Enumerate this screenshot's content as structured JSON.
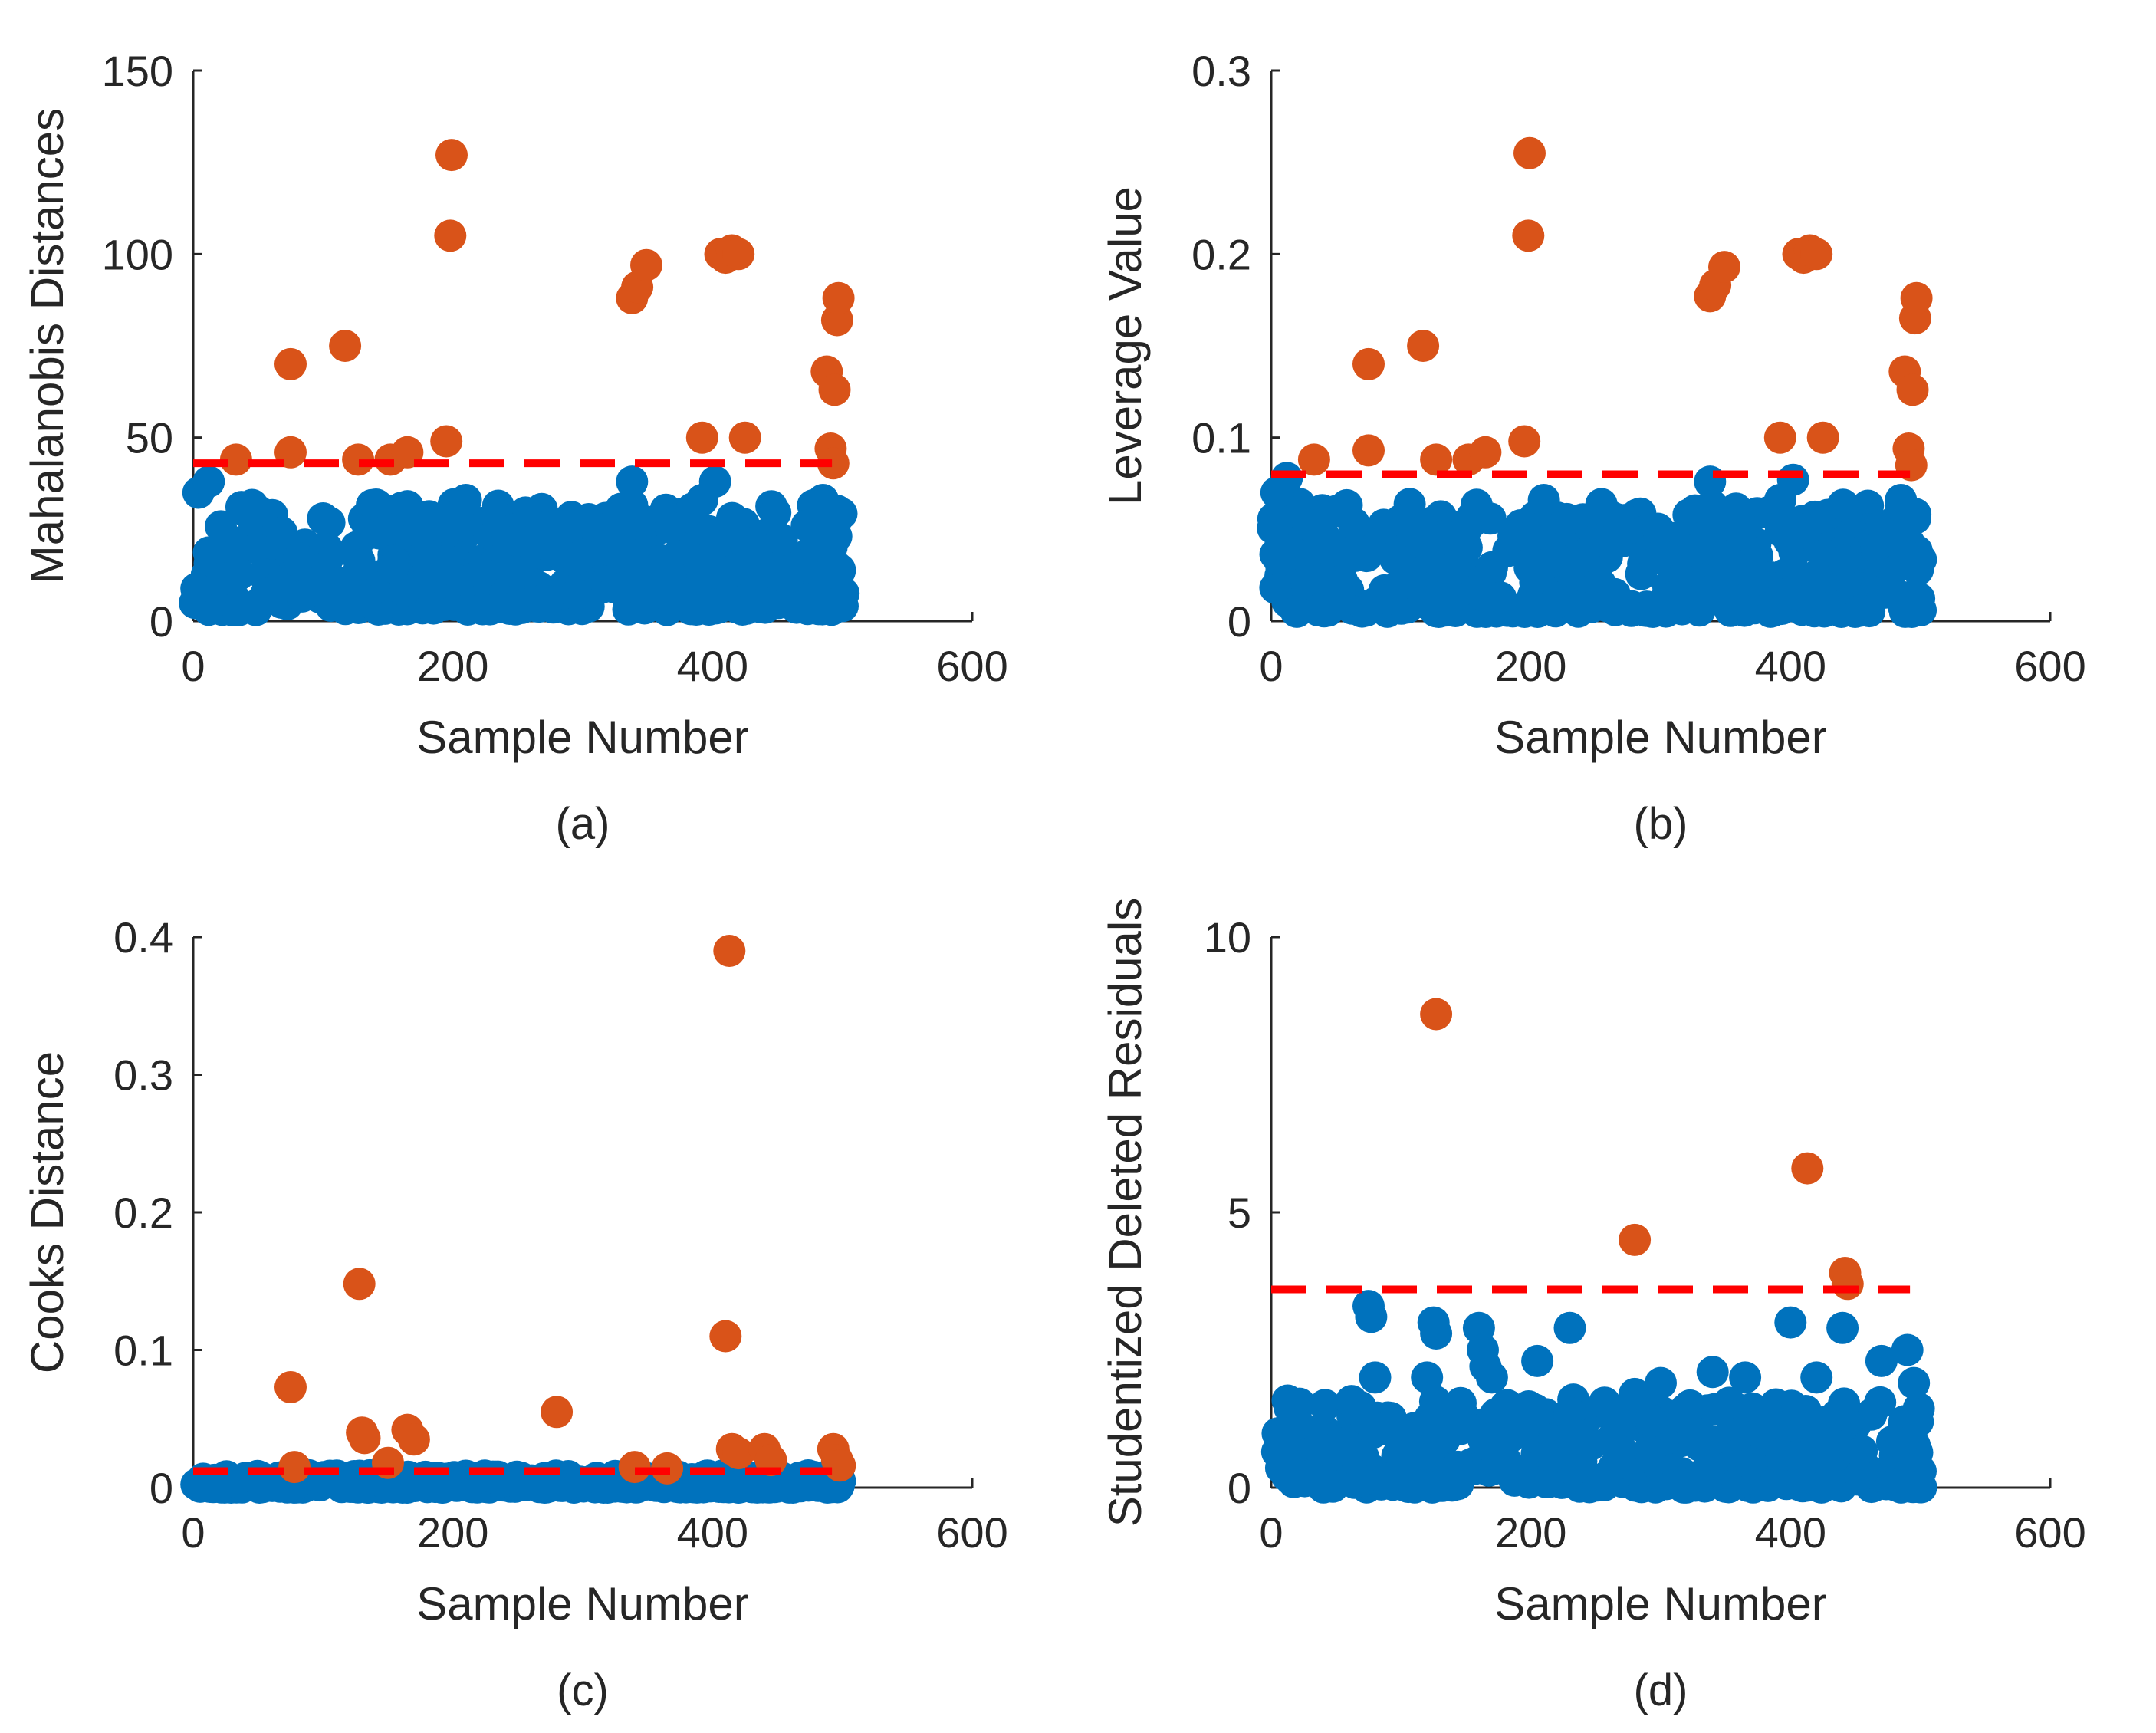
{
  "figure": {
    "layout": "2x2 grid"
  },
  "colors": {
    "normal": "#0072BD",
    "outlier": "#D95319",
    "threshold": "#FF0000",
    "axis": "#262626"
  },
  "chart_data": [
    {
      "id": "a",
      "type": "scatter",
      "caption": "(a)",
      "xlabel": "Sample Number",
      "ylabel": "Mahalanobis Distances",
      "xlim": [
        0,
        600
      ],
      "ylim": [
        0,
        150
      ],
      "xticks": [
        0,
        200,
        400,
        600
      ],
      "yticks": [
        0,
        50,
        100,
        150
      ],
      "xtick_labels": [
        "0",
        "200",
        "400",
        "600"
      ],
      "ytick_labels": [
        "0",
        "50",
        "100",
        "150"
      ],
      "threshold": {
        "y": 43,
        "x_start": 0,
        "x_end": 492
      },
      "series": [
        {
          "name": "Outliers",
          "color_key": "outlier",
          "points": [
            [
              33,
              44
            ],
            [
              75,
              70
            ],
            [
              75,
              46
            ],
            [
              117,
              75
            ],
            [
              127,
              44
            ],
            [
              152,
              44
            ],
            [
              165,
              46
            ],
            [
              195,
              49
            ],
            [
              198,
              105
            ],
            [
              199,
              127
            ],
            [
              338,
              88
            ],
            [
              342,
              91
            ],
            [
              349,
              97
            ],
            [
              392,
              50
            ],
            [
              406,
              100
            ],
            [
              410,
              99
            ],
            [
              415,
              101
            ],
            [
              420,
              100
            ],
            [
              425,
              50
            ],
            [
              488,
              68
            ],
            [
              491,
              47
            ],
            [
              494,
              63
            ],
            [
              496,
              82
            ],
            [
              497,
              88
            ],
            [
              493,
              43
            ]
          ]
        },
        {
          "name": "Inliers",
          "color_key": "normal",
          "random": true,
          "n": 430,
          "seed": 11,
          "range": [
            3,
            32
          ],
          "extra": [
            [
              4,
              35
            ],
            [
              12,
              38
            ],
            [
              50,
              30
            ],
            [
              100,
              28
            ],
            [
              150,
              25
            ],
            [
              210,
              33
            ],
            [
              338,
              38
            ],
            [
              392,
              33
            ],
            [
              402,
              38
            ],
            [
              485,
              33
            ],
            [
              496,
              28
            ],
            [
              498,
              14
            ],
            [
              300,
              18
            ],
            [
              250,
              22
            ]
          ]
        }
      ]
    },
    {
      "id": "b",
      "type": "scatter",
      "caption": "(b)",
      "xlabel": "Sample Number",
      "ylabel": "Leverage Value",
      "xlim": [
        0,
        600
      ],
      "ylim": [
        0,
        0.3
      ],
      "xticks": [
        0,
        200,
        400,
        600
      ],
      "yticks": [
        0,
        0.1,
        0.2,
        0.3
      ],
      "xtick_labels": [
        "0",
        "200",
        "400",
        "600"
      ],
      "ytick_labels": [
        "0",
        "0.1",
        "0.2",
        "0.3"
      ],
      "threshold": {
        "y": 0.08,
        "x_start": 0,
        "x_end": 492
      },
      "series": [
        {
          "name": "Outliers",
          "color_key": "outlier",
          "points": [
            [
              33,
              0.088
            ],
            [
              75,
              0.14
            ],
            [
              75,
              0.093
            ],
            [
              117,
              0.15
            ],
            [
              127,
              0.088
            ],
            [
              152,
              0.088
            ],
            [
              165,
              0.092
            ],
            [
              195,
              0.098
            ],
            [
              198,
              0.21
            ],
            [
              199,
              0.255
            ],
            [
              338,
              0.177
            ],
            [
              342,
              0.183
            ],
            [
              349,
              0.193
            ],
            [
              392,
              0.1
            ],
            [
              406,
              0.2
            ],
            [
              410,
              0.198
            ],
            [
              415,
              0.202
            ],
            [
              420,
              0.2
            ],
            [
              425,
              0.1
            ],
            [
              488,
              0.136
            ],
            [
              491,
              0.094
            ],
            [
              494,
              0.126
            ],
            [
              496,
              0.165
            ],
            [
              497,
              0.176
            ],
            [
              493,
              0.085
            ]
          ]
        },
        {
          "name": "Inliers",
          "color_key": "normal",
          "random": true,
          "n": 430,
          "seed": 23,
          "range": [
            0.005,
            0.064
          ],
          "extra": [
            [
              4,
              0.07
            ],
            [
              12,
              0.078
            ],
            [
              50,
              0.06
            ],
            [
              100,
              0.055
            ],
            [
              150,
              0.05
            ],
            [
              210,
              0.066
            ],
            [
              338,
              0.076
            ],
            [
              392,
              0.066
            ],
            [
              402,
              0.077
            ],
            [
              485,
              0.066
            ],
            [
              496,
              0.056
            ],
            [
              498,
              0.028
            ],
            [
              300,
              0.036
            ],
            [
              250,
              0.044
            ]
          ]
        }
      ]
    },
    {
      "id": "c",
      "type": "scatter",
      "caption": "(c)",
      "xlabel": "Sample Number",
      "ylabel": "Cooks Distance",
      "xlim": [
        0,
        600
      ],
      "ylim": [
        0,
        0.4
      ],
      "xticks": [
        0,
        200,
        400,
        600
      ],
      "yticks": [
        0,
        0.1,
        0.2,
        0.3,
        0.4
      ],
      "xtick_labels": [
        "0",
        "200",
        "400",
        "600"
      ],
      "ytick_labels": [
        "0",
        "0.1",
        "0.2",
        "0.3",
        "0.4"
      ],
      "threshold": {
        "y": 0.012,
        "x_start": 0,
        "x_end": 492
      },
      "series": [
        {
          "name": "Outliers",
          "color_key": "outlier",
          "points": [
            [
              75,
              0.073
            ],
            [
              78,
              0.015
            ],
            [
              128,
              0.148
            ],
            [
              130,
              0.04
            ],
            [
              132,
              0.036
            ],
            [
              150,
              0.018
            ],
            [
              165,
              0.042
            ],
            [
              170,
              0.035
            ],
            [
              280,
              0.055
            ],
            [
              340,
              0.015
            ],
            [
              365,
              0.014
            ],
            [
              410,
              0.11
            ],
            [
              413,
              0.39
            ],
            [
              415,
              0.028
            ],
            [
              420,
              0.025
            ],
            [
              440,
              0.028
            ],
            [
              445,
              0.02
            ],
            [
              493,
              0.028
            ],
            [
              496,
              0.02
            ],
            [
              498,
              0.016
            ]
          ]
        },
        {
          "name": "Inliers",
          "color_key": "normal",
          "random": true,
          "n": 420,
          "seed": 37,
          "range": [
            0,
            0.009
          ],
          "extra": []
        }
      ]
    },
    {
      "id": "d",
      "type": "scatter",
      "caption": "(d)",
      "xlabel": "Sample Number",
      "ylabel": "Studentized Deleted Residuals",
      "xlim": [
        0,
        600
      ],
      "ylim": [
        0,
        10
      ],
      "xticks": [
        0,
        200,
        400,
        600
      ],
      "yticks": [
        0,
        5,
        10
      ],
      "xtick_labels": [
        "0",
        "200",
        "400",
        "600"
      ],
      "ytick_labels": [
        "0",
        "5",
        "10"
      ],
      "threshold": {
        "y": 3.6,
        "x_start": 0,
        "x_end": 492
      },
      "series": [
        {
          "name": "Outliers",
          "color_key": "outlier",
          "points": [
            [
              127,
              8.6
            ],
            [
              280,
              4.5
            ],
            [
              413,
              5.8
            ],
            [
              442,
              3.9
            ],
            [
              444,
              3.7
            ]
          ]
        },
        {
          "name": "Inliers",
          "color_key": "normal",
          "random": true,
          "n": 430,
          "seed": 53,
          "range": [
            0,
            1.6
          ],
          "extra": [
            [
              75,
              3.3
            ],
            [
              77,
              3.1
            ],
            [
              80,
              2.0
            ],
            [
              125,
              3.0
            ],
            [
              127,
              2.8
            ],
            [
              160,
              2.9
            ],
            [
              163,
              2.5
            ],
            [
              165,
              2.2
            ],
            [
              170,
              2.0
            ],
            [
              205,
              2.3
            ],
            [
              230,
              2.9
            ],
            [
              280,
              1.7
            ],
            [
              340,
              2.1
            ],
            [
              365,
              2.0
            ],
            [
              400,
              3.0
            ],
            [
              420,
              2.0
            ],
            [
              440,
              2.9
            ],
            [
              470,
              2.3
            ],
            [
              490,
              2.5
            ],
            [
              495,
              1.9
            ],
            [
              498,
              1.2
            ],
            [
              120,
              2.0
            ],
            [
              300,
              1.9
            ]
          ]
        }
      ]
    }
  ]
}
